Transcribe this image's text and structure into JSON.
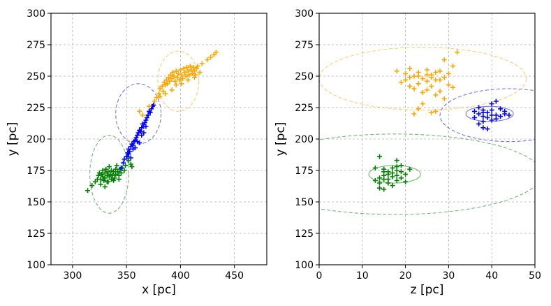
{
  "chart_data": [
    {
      "type": "scatter",
      "xlabel": "x [pc]",
      "ylabel": "y [pc]",
      "xlim": [
        280,
        480
      ],
      "ylim": [
        100,
        300
      ],
      "xticks": [
        300,
        350,
        400,
        450
      ],
      "yticks": [
        100,
        125,
        150,
        175,
        200,
        225,
        250,
        275,
        300
      ],
      "grid": true,
      "series": [
        {
          "name": "green cluster",
          "color": "#008000",
          "marker": "+",
          "points": [
            [
              314,
              159
            ],
            [
              318,
              163
            ],
            [
              321,
              166
            ],
            [
              323,
              168
            ],
            [
              324,
              171
            ],
            [
              325,
              173
            ],
            [
              326,
              168
            ],
            [
              327,
              172
            ],
            [
              328,
              170
            ],
            [
              328,
              175
            ],
            [
              329,
              167
            ],
            [
              330,
              173
            ],
            [
              330,
              169
            ],
            [
              331,
              176
            ],
            [
              332,
              171
            ],
            [
              332,
              166
            ],
            [
              333,
              174
            ],
            [
              334,
              170
            ],
            [
              334,
              178
            ],
            [
              335,
              172
            ],
            [
              336,
              168
            ],
            [
              336,
              175
            ],
            [
              337,
              171
            ],
            [
              338,
              174
            ],
            [
              339,
              169
            ],
            [
              340,
              176
            ],
            [
              340,
              172
            ],
            [
              341,
              179
            ],
            [
              342,
              174
            ],
            [
              343,
              171
            ],
            [
              344,
              176
            ],
            [
              345,
              173
            ],
            [
              346,
              177
            ],
            [
              348,
              175
            ],
            [
              349,
              179
            ],
            [
              351,
              186
            ],
            [
              352,
              183
            ],
            [
              354,
              180
            ],
            [
              355,
              178
            ],
            [
              326,
              164
            ],
            [
              330,
              162
            ],
            [
              333,
              166
            ],
            [
              338,
              167
            ],
            [
              343,
              168
            ]
          ]
        },
        {
          "name": "blue cluster",
          "color": "#0000ff",
          "marker": "+",
          "points": [
            [
              345,
              177
            ],
            [
              347,
              181
            ],
            [
              348,
              184
            ],
            [
              350,
              186
            ],
            [
              351,
              189
            ],
            [
              352,
              192
            ],
            [
              353,
              190
            ],
            [
              354,
              194
            ],
            [
              355,
              196
            ],
            [
              356,
              195
            ],
            [
              357,
              198
            ],
            [
              358,
              199
            ],
            [
              359,
              201
            ],
            [
              360,
              203
            ],
            [
              361,
              205
            ],
            [
              362,
              207
            ],
            [
              363,
              206
            ],
            [
              364,
              209
            ],
            [
              365,
              212
            ],
            [
              366,
              210
            ],
            [
              367,
              213
            ],
            [
              368,
              215
            ],
            [
              369,
              217
            ],
            [
              370,
              219
            ],
            [
              371,
              222
            ],
            [
              372,
              221
            ],
            [
              373,
              224
            ],
            [
              374,
              226
            ],
            [
              375,
              227
            ],
            [
              352,
              188
            ],
            [
              356,
              192
            ],
            [
              360,
              198
            ],
            [
              364,
              203
            ],
            [
              368,
              210
            ],
            [
              366,
              205
            ],
            [
              362,
              197
            ],
            [
              358,
              193
            ],
            [
              354,
              185
            ]
          ]
        },
        {
          "name": "orange cluster",
          "color": "#ffa500",
          "marker": "+",
          "points": [
            [
              362,
              222
            ],
            [
              365,
              219
            ],
            [
              371,
              226
            ],
            [
              376,
              230
            ],
            [
              378,
              233
            ],
            [
              380,
              236
            ],
            [
              381,
              240
            ],
            [
              383,
              242
            ],
            [
              384,
              238
            ],
            [
              385,
              245
            ],
            [
              386,
              243
            ],
            [
              387,
              247
            ],
            [
              388,
              244
            ],
            [
              389,
              249
            ],
            [
              390,
              246
            ],
            [
              391,
              251
            ],
            [
              392,
              248
            ],
            [
              393,
              253
            ],
            [
              394,
              250
            ],
            [
              395,
              246
            ],
            [
              396,
              254
            ],
            [
              397,
              249
            ],
            [
              398,
              252
            ],
            [
              399,
              247
            ],
            [
              400,
              255
            ],
            [
              401,
              251
            ],
            [
              402,
              248
            ],
            [
              403,
              256
            ],
            [
              404,
              253
            ],
            [
              405,
              250
            ],
            [
              406,
              257
            ],
            [
              407,
              254
            ],
            [
              408,
              251
            ],
            [
              409,
              258
            ],
            [
              410,
              255
            ],
            [
              411,
              252
            ],
            [
              412,
              257
            ],
            [
              413,
              254
            ],
            [
              414,
              251
            ],
            [
              415,
              256
            ],
            [
              416,
              258
            ],
            [
              418,
              253
            ],
            [
              420,
              260
            ],
            [
              425,
              263
            ],
            [
              428,
              265
            ],
            [
              431,
              267
            ],
            [
              433,
              269
            ],
            [
              392,
              239
            ],
            [
              386,
              236
            ],
            [
              381,
              234
            ],
            [
              396,
              243
            ],
            [
              401,
              244
            ],
            [
              407,
              247
            ],
            [
              413,
              249
            ]
          ]
        }
      ],
      "ellipses": [
        {
          "color": "#008000",
          "center": [
            334,
            172
          ],
          "rx": 18,
          "ry": 31
        },
        {
          "color": "#0000ff",
          "center": [
            361,
            220
          ],
          "rx": 21,
          "ry": 24
        },
        {
          "color": "#ffa500",
          "center": [
            398,
            246
          ],
          "rx": 19,
          "ry": 24
        }
      ]
    },
    {
      "type": "scatter",
      "xlabel": "z [pc]",
      "ylabel": "y [pc]",
      "xlim": [
        0,
        50
      ],
      "ylim": [
        100,
        300
      ],
      "xticks": [
        0,
        10,
        20,
        30,
        40,
        50
      ],
      "yticks": [
        100,
        125,
        150,
        175,
        200,
        225,
        250,
        275,
        300
      ],
      "grid": true,
      "series": [
        {
          "name": "green cluster",
          "color": "#008000",
          "marker": "+",
          "points": [
            [
              14,
              186
            ],
            [
              18,
              183
            ],
            [
              13,
              177
            ],
            [
              19,
              179
            ],
            [
              15,
              174
            ],
            [
              16,
              172
            ],
            [
              17,
              170
            ],
            [
              18,
              175
            ],
            [
              14,
              169
            ],
            [
              15,
              176
            ],
            [
              16,
              168
            ],
            [
              17,
              173
            ],
            [
              18,
              171
            ],
            [
              19,
              174
            ],
            [
              16,
              165
            ],
            [
              17,
              163
            ],
            [
              18,
              167
            ],
            [
              15,
              171
            ],
            [
              20,
              172
            ],
            [
              21,
              176
            ],
            [
              14,
              165
            ],
            [
              13,
              167
            ],
            [
              15,
              160
            ],
            [
              14,
              161
            ],
            [
              16,
              174
            ],
            [
              17,
              177
            ],
            [
              19,
              169
            ],
            [
              20,
              166
            ],
            [
              15,
              168
            ],
            [
              18,
              178
            ]
          ]
        },
        {
          "name": "blue cluster",
          "color": "#0000ff",
          "marker": "+",
          "points": [
            [
              36,
              222
            ],
            [
              37,
              220
            ],
            [
              38,
              218
            ],
            [
              39,
              221
            ],
            [
              40,
              223
            ],
            [
              41,
              219
            ],
            [
              42,
              224
            ],
            [
              40,
              228
            ],
            [
              41,
              230
            ],
            [
              39,
              217
            ],
            [
              38,
              214
            ],
            [
              37,
              212
            ],
            [
              38,
              209
            ],
            [
              39,
              208
            ],
            [
              40,
              215
            ],
            [
              41,
              216
            ],
            [
              42,
              218
            ],
            [
              43,
              220
            ],
            [
              44,
              219
            ],
            [
              37,
              225
            ],
            [
              38,
              223
            ],
            [
              36,
              217
            ],
            [
              40,
              219
            ],
            [
              43,
              222
            ],
            [
              38,
              221
            ]
          ]
        },
        {
          "name": "orange cluster",
          "color": "#ffa500",
          "marker": "+",
          "points": [
            [
              18,
              254
            ],
            [
              20,
              252
            ],
            [
              21,
              256
            ],
            [
              22,
              250
            ],
            [
              23,
              253
            ],
            [
              24,
              248
            ],
            [
              25,
              255
            ],
            [
              26,
              251
            ],
            [
              27,
              247
            ],
            [
              28,
              254
            ],
            [
              29,
              249
            ],
            [
              30,
              252
            ],
            [
              31,
              258
            ],
            [
              29,
              263
            ],
            [
              32,
              269
            ],
            [
              20,
              247
            ],
            [
              19,
              245
            ],
            [
              21,
              242
            ],
            [
              22,
              240
            ],
            [
              23,
              244
            ],
            [
              24,
              237
            ],
            [
              25,
              239
            ],
            [
              26,
              242
            ],
            [
              27,
              235
            ],
            [
              28,
              238
            ],
            [
              30,
              243
            ],
            [
              31,
              241
            ],
            [
              24,
              228
            ],
            [
              23,
              224
            ],
            [
              22,
              220
            ],
            [
              26,
              221
            ],
            [
              27,
              222
            ],
            [
              29,
              232
            ],
            [
              25,
              246
            ],
            [
              26,
              249
            ],
            [
              27,
              253
            ],
            [
              28,
              247
            ],
            [
              21,
              249
            ],
            [
              23,
              250
            ],
            [
              25,
              251
            ]
          ]
        }
      ],
      "ellipses": [
        {
          "color": "#008000",
          "center": [
            17.5,
            172
          ],
          "rx": 34,
          "ry": 32
        },
        {
          "color": "#0000ff",
          "center": [
            44,
            219
          ],
          "rx": 16,
          "ry": 21
        },
        {
          "color": "#ffa500",
          "center": [
            24,
            248
          ],
          "rx": 24,
          "ry": 25
        },
        {
          "color": "#008000",
          "center": [
            17.5,
            172
          ],
          "rx": 6,
          "ry": 7
        },
        {
          "color": "#0000ff",
          "center": [
            39.5,
            220
          ],
          "rx": 5.5,
          "ry": 6
        }
      ]
    }
  ]
}
